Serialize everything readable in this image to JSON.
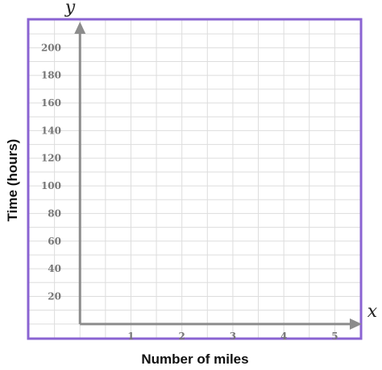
{
  "chart_data": {
    "type": "line",
    "title": "",
    "xlabel": "Number of miles",
    "ylabel": "Time (hours)",
    "x_axis_letter": "x",
    "y_axis_letter": "y",
    "xlim": [
      -1,
      5.5
    ],
    "ylim": [
      -10,
      220
    ],
    "x_ticks": [
      1,
      2,
      3,
      4,
      5
    ],
    "y_ticks": [
      20,
      40,
      60,
      80,
      100,
      120,
      140,
      160,
      180,
      200
    ],
    "x_grid_step": 0.5,
    "y_grid_step": 10,
    "grid": true,
    "series": [],
    "colors": {
      "frame": "#8a63d2",
      "grid": "#dddddd",
      "axis": "#8c8c8c",
      "tick_label": "#777777"
    }
  }
}
